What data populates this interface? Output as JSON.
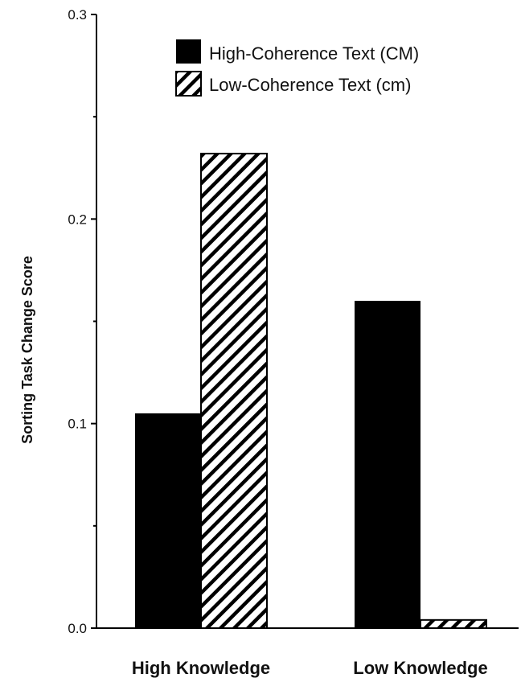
{
  "chart_data": {
    "type": "bar",
    "categories": [
      "High Knowledge",
      "Low Knowledge"
    ],
    "series": [
      {
        "name": "High-Coherence Text (CM)",
        "values": [
          0.105,
          0.16
        ],
        "fill": "solid",
        "color": "#000000"
      },
      {
        "name": "Low-Coherence Text (cm)",
        "values": [
          0.232,
          0.004
        ],
        "fill": "hatched",
        "color": "#000000"
      }
    ],
    "title": "",
    "xlabel": "",
    "ylabel": "Sorting Task Change Score",
    "ylim": [
      0,
      0.3
    ],
    "yticks": [
      "0.0",
      "0.1",
      "0.2",
      "0.3"
    ],
    "grid": false,
    "legend_position": "top-right"
  }
}
